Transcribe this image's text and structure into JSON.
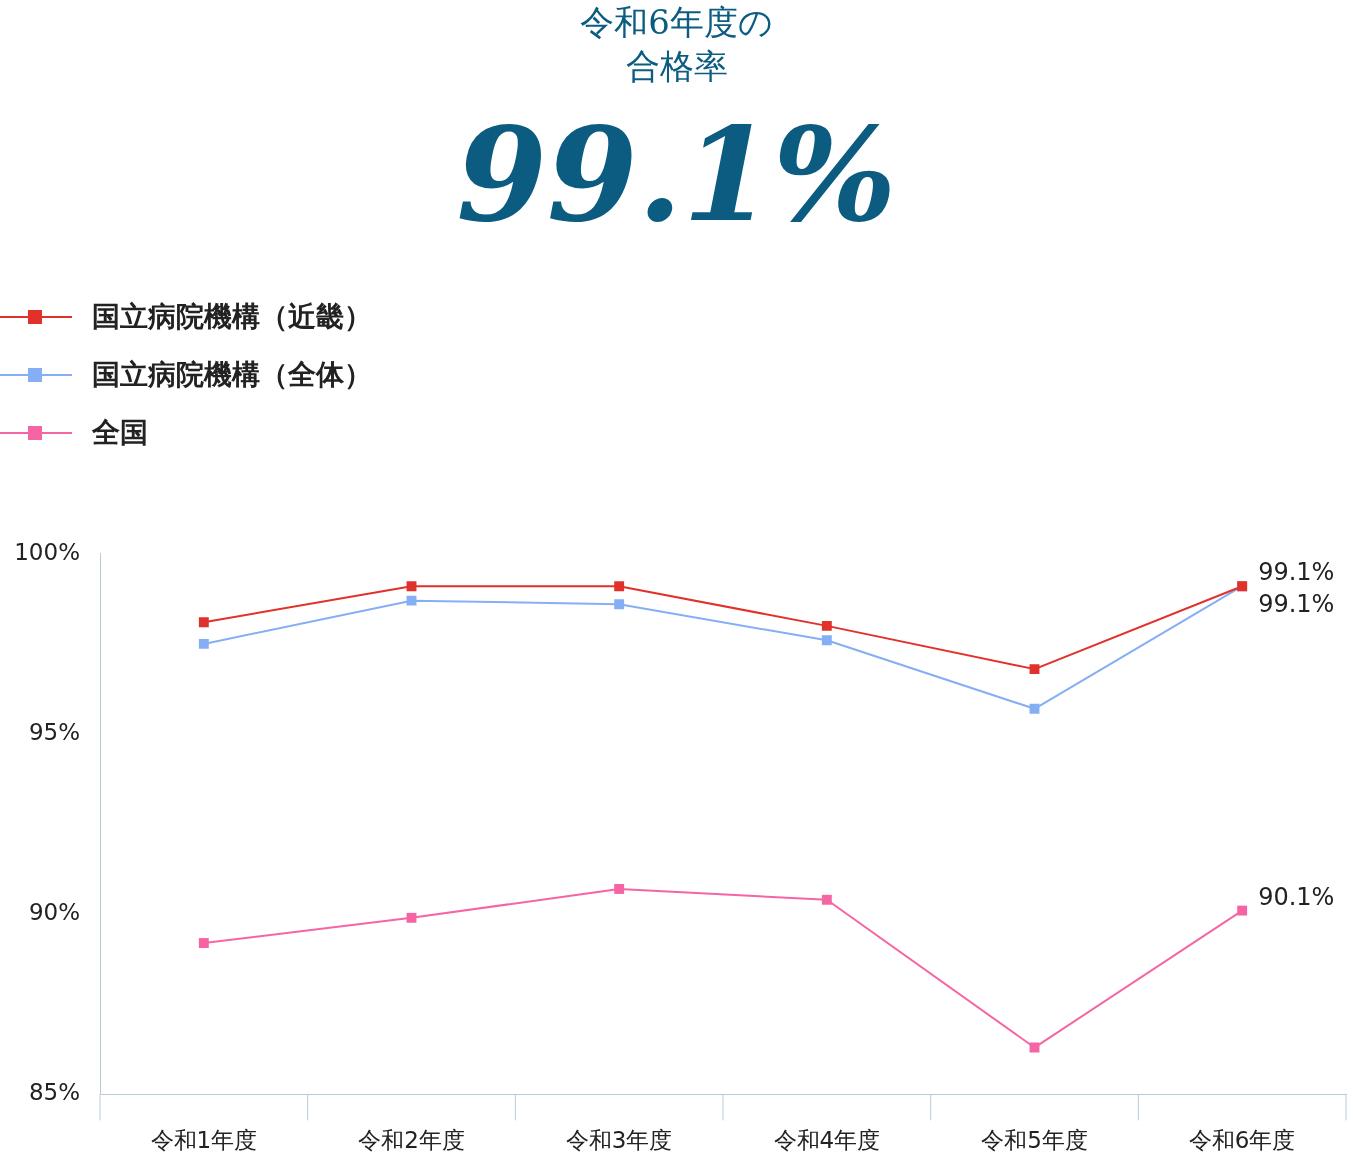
{
  "chart_data": {
    "type": "line",
    "title": "令和6年度の合格率",
    "subtitle": "99.1%",
    "categories": [
      "令和1年度",
      "令和2年度",
      "令和3年度",
      "令和4年度",
      "令和5年度",
      "令和6年度"
    ],
    "series": [
      {
        "name": "国立病院機構（近畿）",
        "color": "#e2312a",
        "values": [
          98.1,
          99.1,
          99.1,
          98.0,
          96.8,
          99.1
        ],
        "value_labels": [
          null,
          null,
          null,
          null,
          null,
          "99.1%"
        ]
      },
      {
        "name": "国立病院機構（全体）",
        "color": "#86aef5",
        "values": [
          97.5,
          98.7,
          98.6,
          97.6,
          95.7,
          99.1
        ],
        "value_labels": [
          null,
          null,
          null,
          null,
          null,
          "99.1%"
        ]
      },
      {
        "name": "全国",
        "color": "#f565a3",
        "values": [
          89.2,
          89.9,
          90.7,
          90.4,
          86.3,
          90.1
        ],
        "value_labels": [
          null,
          null,
          null,
          null,
          null,
          "90.1%"
        ]
      }
    ],
    "ylim": [
      85,
      100
    ],
    "yticks": [
      {
        "value": 85,
        "label": "85%"
      },
      {
        "value": 90,
        "label": "90%"
      },
      {
        "value": 95,
        "label": "95%"
      },
      {
        "value": 100,
        "label": "100%"
      }
    ],
    "legend": "top left",
    "marker": "square",
    "line_style": "solid"
  }
}
